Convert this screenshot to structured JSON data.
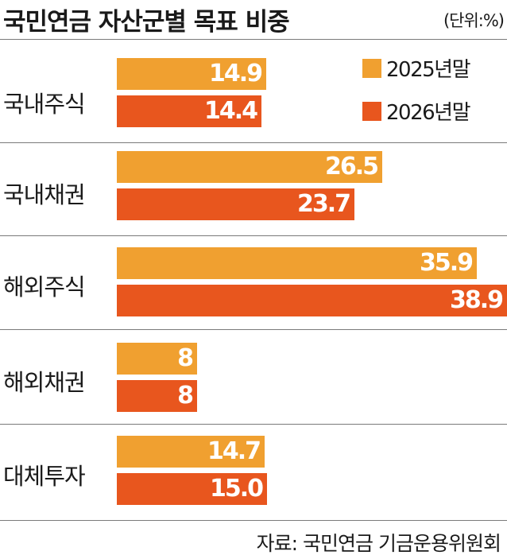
{
  "chart_data": {
    "type": "bar",
    "orientation": "horizontal",
    "title": "국민연금 자산군별 목표 비중",
    "unit_label": "(단위:%)",
    "categories": [
      "국내주식",
      "국내채권",
      "해외주식",
      "해외채권",
      "대체투자"
    ],
    "series": [
      {
        "name": "2025년말",
        "color": "#F0A030",
        "values": [
          14.9,
          26.5,
          35.9,
          8,
          14.7
        ],
        "labels": [
          "14.9",
          "26.5",
          "35.9",
          "8",
          "14.7"
        ]
      },
      {
        "name": "2026년말",
        "color": "#E8561E",
        "values": [
          14.4,
          23.7,
          38.9,
          8,
          15.0
        ],
        "labels": [
          "14.4",
          "23.7",
          "38.9",
          "8",
          "15.0"
        ]
      }
    ],
    "xlim": [
      0,
      38.9
    ],
    "grid": false,
    "legend_position": "top-right",
    "source": "자료: 국민연금 기금운용위원회"
  }
}
